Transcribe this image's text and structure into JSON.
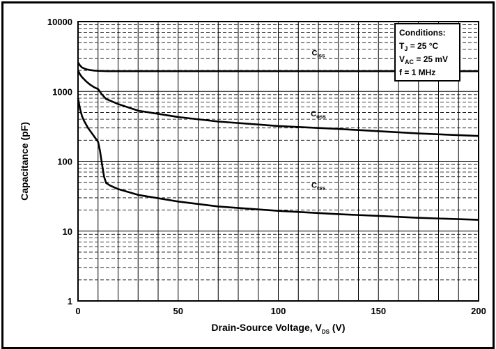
{
  "chart_data": {
    "type": "line",
    "xlabel": {
      "main": "Drain-Source Voltage, V",
      "sub": "DS",
      "unit": " (V)"
    },
    "ylabel": "Capacitance (pF)",
    "xlim": [
      0,
      200
    ],
    "ylim": [
      1,
      10000
    ],
    "yscale": "log",
    "grid": true,
    "x_ticks": [
      0,
      50,
      100,
      150,
      200
    ],
    "y_ticks": [
      1,
      10,
      100,
      1000,
      10000
    ],
    "x_tick_labels": [
      "0",
      "50",
      "100",
      "150",
      "200"
    ],
    "y_tick_labels": [
      "1",
      "10",
      "100",
      "1000",
      "10000"
    ],
    "series": [
      {
        "name": "Ciss",
        "label_main": "C",
        "label_sub": "iss",
        "label_at": [
          120,
          3300
        ],
        "x": [
          0,
          1,
          2,
          4,
          6,
          8,
          10,
          15,
          20,
          50,
          100,
          150,
          200
        ],
        "y": [
          2600,
          2350,
          2200,
          2080,
          2020,
          1990,
          1970,
          1950,
          1950,
          1950,
          1950,
          1950,
          1950
        ]
      },
      {
        "name": "Coss",
        "label_main": "C",
        "label_sub": "oss",
        "label_at": [
          120,
          440
        ],
        "x": [
          0,
          1,
          2,
          4,
          6,
          8,
          10,
          12,
          14,
          20,
          30,
          50,
          70,
          100,
          130,
          150,
          170,
          200
        ],
        "y": [
          2000,
          1750,
          1600,
          1400,
          1250,
          1150,
          1080,
          900,
          780,
          660,
          530,
          430,
          370,
          320,
          290,
          270,
          250,
          230
        ]
      },
      {
        "name": "Crss",
        "label_main": "C",
        "label_sub": "rss",
        "label_at": [
          120,
          42
        ],
        "x": [
          0,
          1,
          2,
          3,
          5,
          7,
          10,
          11,
          12,
          13,
          14,
          16,
          20,
          30,
          50,
          70,
          100,
          130,
          150,
          170,
          200
        ],
        "y": [
          800,
          560,
          440,
          380,
          300,
          250,
          190,
          140,
          90,
          60,
          49,
          45,
          40,
          33,
          26.5,
          22.5,
          19.5,
          17.5,
          16.5,
          15.5,
          14.5
        ]
      }
    ],
    "annotation": {
      "title": "Conditions:",
      "lines": [
        {
          "main": "T",
          "sub": "J",
          "rest": " = 25 °C"
        },
        {
          "main": "V",
          "sub": "AC",
          "rest": " = 25 mV"
        },
        {
          "main": "f = 1 MHz",
          "sub": "",
          "rest": ""
        }
      ]
    },
    "colors": {
      "line": "#000000",
      "grid_major": "#000000",
      "grid_minor": "#000000",
      "background": "#ffffff"
    }
  }
}
